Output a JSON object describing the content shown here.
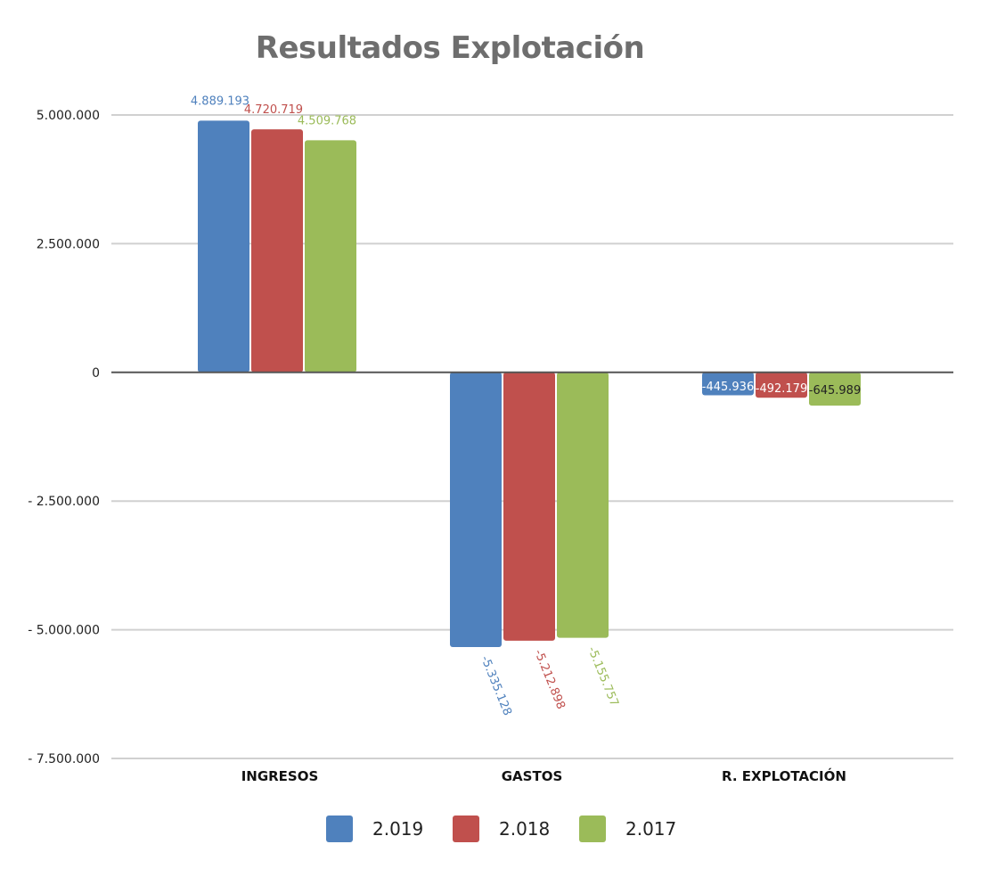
{
  "chart_data": {
    "type": "bar",
    "title": "Resultados Explotación",
    "categories": [
      "INGRESOS",
      "GASTOS",
      "R. EXPLOTACIÓN"
    ],
    "series": [
      {
        "name": "2.019",
        "color": "#4f81bd",
        "values": [
          4889193,
          -5335128,
          -445936
        ],
        "labels": [
          "4.889.193",
          "-5.335.128",
          "-445.936"
        ]
      },
      {
        "name": "2.018",
        "color": "#c0504d",
        "values": [
          4720719,
          -5212898,
          -492179
        ],
        "labels": [
          "4.720.719",
          "-5.212.898",
          "-492.179"
        ]
      },
      {
        "name": "2.017",
        "color": "#9bbb59",
        "values": [
          4509768,
          -5155757,
          -645989
        ],
        "labels": [
          "4.509.768",
          "-5.155.757",
          "-645.989"
        ]
      }
    ],
    "yticks": [
      5000000,
      2500000,
      0,
      -2500000,
      -5000000,
      -7500000
    ],
    "ytick_labels": [
      "5.000.000",
      "2.500.000",
      "0",
      "- 2.500.000",
      "- 5.000.000",
      "- 7.500.000"
    ],
    "ylim": [
      -7500000,
      5000000
    ],
    "grid": true,
    "legend_position": "bottom",
    "xlabel": "",
    "ylabel": ""
  }
}
